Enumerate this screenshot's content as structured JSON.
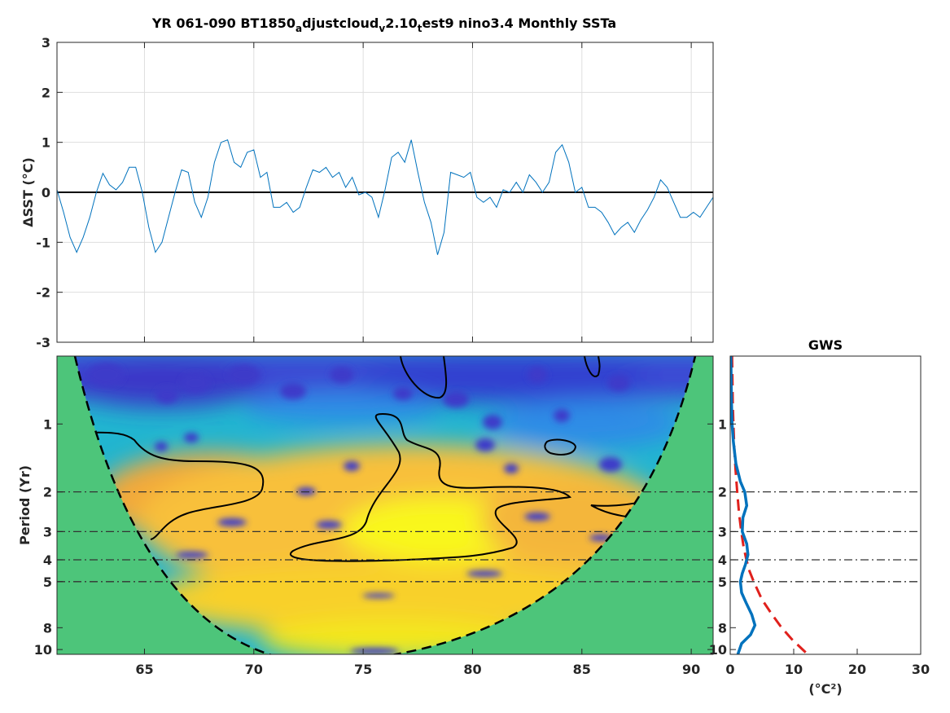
{
  "chart_data": [
    {
      "type": "line",
      "title_parts": [
        "YR 061-090 BT1850",
        "a",
        "djustcloud",
        "v",
        "2.10",
        "t",
        "est9 nino3.4 Monthly SSTa"
      ],
      "xlabel": "",
      "ylabel": "ΔSST (°C)",
      "xlim": [
        61,
        91
      ],
      "ylim": [
        -3,
        3
      ],
      "xticks": [
        65,
        70,
        75,
        80,
        85,
        90
      ],
      "yticks": [
        -3,
        -2,
        -1,
        0,
        1,
        2,
        3
      ],
      "grid": true,
      "reference_line_y": 0,
      "series_color": "#0072BD",
      "x": [
        61.0,
        61.3,
        61.6,
        61.9,
        62.2,
        62.5,
        62.8,
        63.1,
        63.4,
        63.7,
        64.0,
        64.3,
        64.6,
        64.9,
        65.2,
        65.5,
        65.8,
        66.1,
        66.4,
        66.7,
        67.0,
        67.3,
        67.6,
        67.9,
        68.2,
        68.5,
        68.8,
        69.1,
        69.4,
        69.7,
        70.0,
        70.3,
        70.6,
        70.9,
        71.2,
        71.5,
        71.8,
        72.1,
        72.4,
        72.7,
        73.0,
        73.3,
        73.6,
        73.9,
        74.2,
        74.5,
        74.8,
        75.1,
        75.4,
        75.7,
        76.0,
        76.3,
        76.6,
        76.9,
        77.2,
        77.5,
        77.8,
        78.1,
        78.4,
        78.7,
        79.0,
        79.3,
        79.6,
        79.9,
        80.2,
        80.5,
        80.8,
        81.1,
        81.4,
        81.7,
        82.0,
        82.3,
        82.6,
        82.9,
        83.2,
        83.5,
        83.8,
        84.1,
        84.4,
        84.7,
        85.0,
        85.3,
        85.6,
        85.9,
        86.2,
        86.5,
        86.8,
        87.1,
        87.4,
        87.7,
        88.0,
        88.3,
        88.6,
        88.9,
        89.2,
        89.5,
        89.8,
        90.1,
        90.4,
        90.7,
        91.0
      ],
      "y": [
        0.05,
        -0.4,
        -0.9,
        -1.2,
        -0.9,
        -0.5,
        0.0,
        0.38,
        0.15,
        0.05,
        0.2,
        0.5,
        0.5,
        0.0,
        -0.7,
        -1.2,
        -1.0,
        -0.5,
        0.0,
        0.45,
        0.4,
        -0.2,
        -0.5,
        -0.1,
        0.6,
        1.0,
        1.05,
        0.6,
        0.5,
        0.8,
        0.85,
        0.3,
        0.4,
        -0.3,
        -0.3,
        -0.2,
        -0.4,
        -0.3,
        0.1,
        0.45,
        0.4,
        0.5,
        0.3,
        0.4,
        0.1,
        0.3,
        -0.05,
        0.0,
        -0.1,
        -0.5,
        0.05,
        0.7,
        0.8,
        0.6,
        1.05,
        0.4,
        -0.2,
        -0.6,
        -1.25,
        -0.8,
        0.4,
        0.35,
        0.3,
        0.4,
        -0.1,
        -0.2,
        -0.1,
        -0.3,
        0.05,
        0.0,
        0.2,
        0.0,
        0.35,
        0.2,
        0.0,
        0.2,
        0.8,
        0.95,
        0.6,
        0.0,
        0.1,
        -0.3,
        -0.3,
        -0.4,
        -0.6,
        -0.85,
        -0.7,
        -0.6,
        -0.8,
        -0.55,
        -0.35,
        -0.1,
        0.25,
        0.1,
        -0.2,
        -0.5,
        -0.5,
        -0.4,
        -0.5,
        -0.3,
        -0.1
      ]
    },
    {
      "type": "heatmap",
      "title": "",
      "xlabel": "",
      "ylabel": "Period (Yr)",
      "xlim": [
        61,
        91
      ],
      "ylim": [
        0.5,
        10.5
      ],
      "y_scale": "log2",
      "xticks": [
        65,
        70,
        75,
        80,
        85,
        90
      ],
      "yticks": [
        1,
        2,
        3,
        4,
        5,
        8,
        10
      ],
      "reference_periods": [
        2,
        3,
        4,
        5
      ],
      "colormap": "parula",
      "cone_fill_color": "#4DC57A"
    },
    {
      "type": "line",
      "title": "GWS",
      "xlabel": "(°C²)",
      "xlim": [
        0,
        30
      ],
      "xticks": [
        0,
        10,
        20,
        30
      ],
      "yticks": [
        1,
        2,
        3,
        4,
        5,
        8,
        10
      ],
      "y_scale": "log2",
      "reference_periods": [
        2,
        3,
        4,
        5
      ],
      "series": [
        {
          "color": "#0072BD",
          "style": "solid",
          "period": [
            0.5,
            0.8,
            1.0,
            1.2,
            1.5,
            1.8,
            2.0,
            2.3,
            2.6,
            3.0,
            3.4,
            3.8,
            4.2,
            4.6,
            5.0,
            5.6,
            6.2,
            7.0,
            7.8,
            8.6,
            9.4,
            10.5
          ],
          "power": [
            0.1,
            0.2,
            0.3,
            0.5,
            0.9,
            1.6,
            2.3,
            2.6,
            2.0,
            1.9,
            2.6,
            2.8,
            2.4,
            1.9,
            1.6,
            1.8,
            2.5,
            3.4,
            3.9,
            3.2,
            1.8,
            1.2
          ]
        },
        {
          "color": "#E0201C",
          "style": "dashed",
          "period": [
            0.5,
            0.8,
            1.0,
            1.3,
            1.6,
            2.0,
            2.5,
            3.0,
            3.5,
            4.0,
            4.5,
            5.0,
            6.0,
            7.0,
            8.0,
            9.0,
            10.5
          ],
          "power": [
            0.3,
            0.4,
            0.5,
            0.65,
            0.85,
            1.1,
            1.4,
            1.75,
            2.1,
            2.55,
            3.05,
            3.7,
            5.0,
            6.6,
            8.1,
            9.7,
            12.2
          ]
        }
      ]
    }
  ]
}
